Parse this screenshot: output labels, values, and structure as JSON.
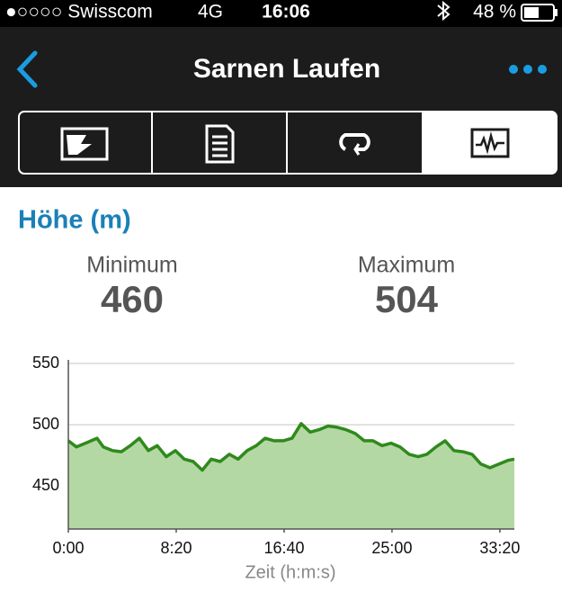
{
  "status_bar": {
    "carrier": "●○○○○ Swisscom",
    "network": "4G",
    "time": "16:06",
    "battery": "48 %"
  },
  "nav": {
    "title": "Sarnen Laufen"
  },
  "section_title": "Höhe (m)",
  "stats": [
    {
      "label": "Minimum",
      "value": 460
    },
    {
      "label": "Maximum",
      "value": 504
    }
  ],
  "chart_data": {
    "type": "area",
    "xlabel": "Zeit (h:m:s)",
    "x": [
      0,
      37,
      79,
      133,
      162,
      204,
      246,
      287,
      329,
      371,
      412,
      454,
      496,
      537,
      579,
      621,
      662,
      704,
      746,
      787,
      829,
      871,
      912,
      954,
      996,
      1037,
      1079,
      1121,
      1162,
      1204,
      1246,
      1287,
      1329,
      1371,
      1412,
      1454,
      1496,
      1537,
      1579,
      1621,
      1662,
      1704,
      1746,
      1787,
      1829,
      1871,
      1912,
      1954,
      1996,
      2037,
      2067
    ],
    "values": [
      487,
      482,
      485,
      489,
      482,
      479,
      478,
      483,
      489,
      479,
      483,
      474,
      479,
      472,
      470,
      463,
      472,
      470,
      476,
      472,
      479,
      483,
      489,
      487,
      487,
      489,
      501,
      494,
      496,
      499,
      498,
      496,
      493,
      487,
      487,
      483,
      485,
      482,
      476,
      474,
      476,
      482,
      487,
      479,
      478,
      476,
      468,
      465,
      468,
      471,
      472
    ],
    "color": "#2f8a1c",
    "fill": "#b4d8a4",
    "xlim": [
      0,
      2067
    ],
    "ylim": [
      415,
      550
    ],
    "xticks": [
      {
        "value": 0,
        "label": "0:00"
      },
      {
        "value": 500,
        "label": "8:20"
      },
      {
        "value": 1000,
        "label": "16:40"
      },
      {
        "value": 1500,
        "label": "25:00"
      },
      {
        "value": 2000,
        "label": "33:20"
      }
    ],
    "yticks": [
      450,
      500,
      550
    ],
    "grid": true
  }
}
